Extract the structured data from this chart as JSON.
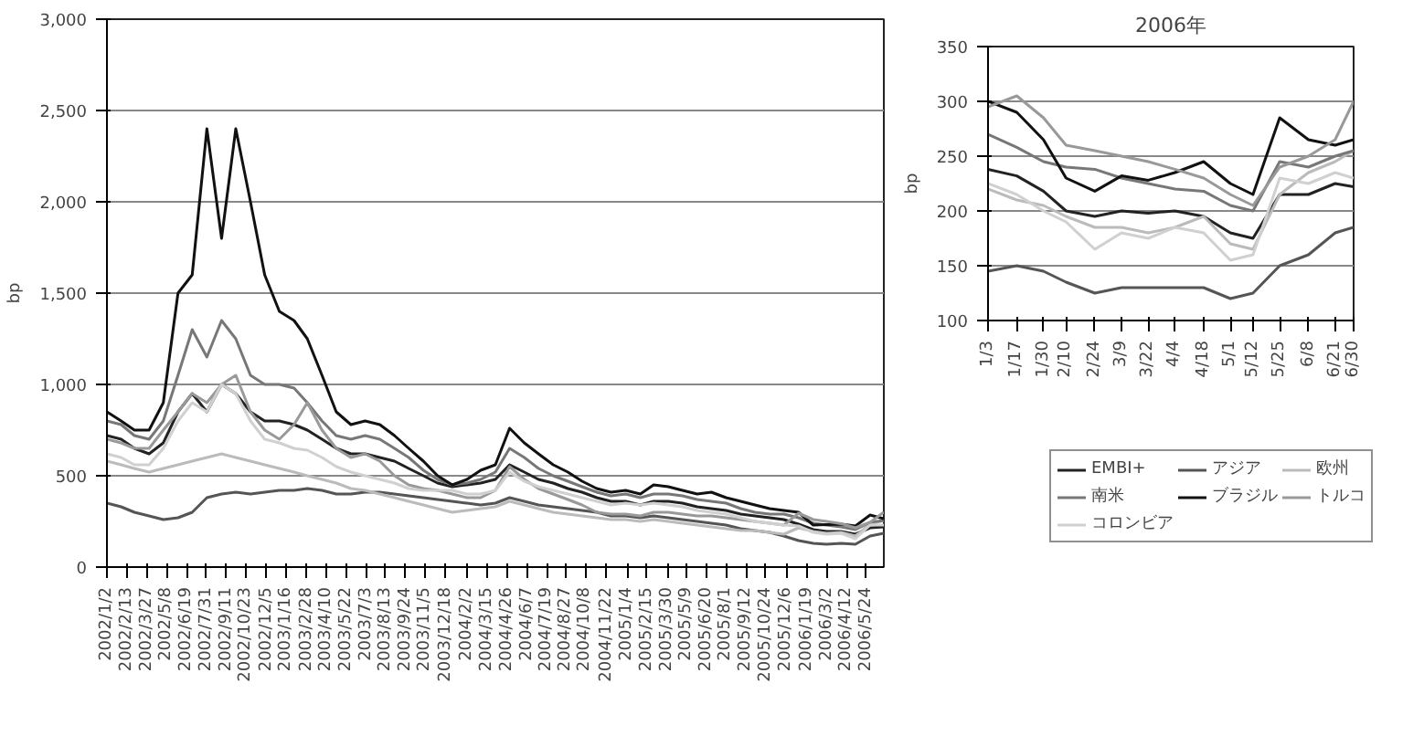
{
  "chart_data": [
    {
      "type": "line",
      "ylabel": "bp",
      "grid": "y",
      "legend": "bottom right",
      "ylim": [
        0,
        3000
      ],
      "yticks": [
        0,
        {
          "value": 500,
          "label": "500"
        },
        {
          "value": 1000,
          "label": "1,000"
        },
        {
          "value": 1500,
          "label": "1,500"
        },
        {
          "value": 2000,
          "label": "2,000"
        },
        {
          "value": 2500,
          "label": "2,500"
        },
        {
          "value": 3000,
          "label": "3,000"
        }
      ],
      "xlim": [
        "2002-01-02",
        "2006-06-30"
      ],
      "xticks": [
        {
          "value": "2002-01-02",
          "label": "2002/1/2"
        },
        {
          "value": "2002-02-13",
          "label": "2002/2/13"
        },
        {
          "value": "2002-03-27",
          "label": "2002/3/27"
        },
        {
          "value": "2002-05-08",
          "label": "2002/5/8"
        },
        {
          "value": "2002-06-19",
          "label": "2002/6/19"
        },
        {
          "value": "2002-07-31",
          "label": "2002/7/31"
        },
        {
          "value": "2002-09-11",
          "label": "2002/9/11"
        },
        {
          "value": "2002-10-23",
          "label": "2002/10/23"
        },
        {
          "value": "2002-12-05",
          "label": "2002/12/5"
        },
        {
          "value": "2003-01-16",
          "label": "2003/1/16"
        },
        {
          "value": "2003-02-28",
          "label": "2003/2/28"
        },
        {
          "value": "2003-04-10",
          "label": "2003/4/10"
        },
        {
          "value": "2003-05-22",
          "label": "2003/5/22"
        },
        {
          "value": "2003-07-03",
          "label": "2003/7/3"
        },
        {
          "value": "2003-08-13",
          "label": "2003/8/13"
        },
        {
          "value": "2003-09-24",
          "label": "2003/9/24"
        },
        {
          "value": "2003-11-05",
          "label": "2003/11/5"
        },
        {
          "value": "2003-12-18",
          "label": "2003/12/18"
        },
        {
          "value": "2004-02-02",
          "label": "2004/2/2"
        },
        {
          "value": "2004-03-15",
          "label": "2004/3/15"
        },
        {
          "value": "2004-04-26",
          "label": "2004/4/26"
        },
        {
          "value": "2004-06-07",
          "label": "2004/6/7"
        },
        {
          "value": "2004-07-19",
          "label": "2004/7/19"
        },
        {
          "value": "2004-08-27",
          "label": "2004/8/27"
        },
        {
          "value": "2004-10-08",
          "label": "2004/10/8"
        },
        {
          "value": "2004-11-22",
          "label": "2004/11/22"
        },
        {
          "value": "2005-01-04",
          "label": "2005/1/4"
        },
        {
          "value": "2005-02-15",
          "label": "2005/2/15"
        },
        {
          "value": "2005-03-30",
          "label": "2005/3/30"
        },
        {
          "value": "2005-05-09",
          "label": "2005/5/9"
        },
        {
          "value": "2005-06-20",
          "label": "2005/6/20"
        },
        {
          "value": "2005-08-01",
          "label": "2005/8/1"
        },
        {
          "value": "2005-09-12",
          "label": "2005/9/12"
        },
        {
          "value": "2005-10-24",
          "label": "2005/10/24"
        },
        {
          "value": "2005-12-06",
          "label": "2005/12/6"
        },
        {
          "value": "2006-01-19",
          "label": "2006/1/19"
        },
        {
          "value": "2006-03-02",
          "label": "2006/3/2"
        },
        {
          "value": "2006-04-12",
          "label": "2006/4/12"
        },
        {
          "value": "2006-05-24",
          "label": "2006/5/24"
        }
      ],
      "x": [
        "2002-01-02",
        "2002-02-01",
        "2002-03-01",
        "2002-04-01",
        "2002-05-01",
        "2002-06-01",
        "2002-07-01",
        "2002-08-01",
        "2002-09-01",
        "2002-10-01",
        "2002-11-01",
        "2002-12-01",
        "2003-01-01",
        "2003-02-01",
        "2003-03-01",
        "2003-04-01",
        "2003-05-01",
        "2003-06-01",
        "2003-07-01",
        "2003-08-01",
        "2003-09-01",
        "2003-10-01",
        "2003-11-01",
        "2003-12-01",
        "2004-01-01",
        "2004-02-01",
        "2004-03-01",
        "2004-04-01",
        "2004-05-01",
        "2004-06-01",
        "2004-07-01",
        "2004-08-01",
        "2004-09-01",
        "2004-10-01",
        "2004-11-01",
        "2004-12-01",
        "2005-01-01",
        "2005-02-01",
        "2005-03-01",
        "2005-04-01",
        "2005-05-01",
        "2005-06-01",
        "2005-07-01",
        "2005-08-01",
        "2005-09-01",
        "2005-10-01",
        "2005-11-01",
        "2005-12-01",
        "2006-01-01",
        "2006-02-01",
        "2006-03-01",
        "2006-04-01",
        "2006-05-01",
        "2006-06-01",
        "2006-06-30"
      ],
      "series": [
        {
          "name": "EMBI+",
          "color": "#222222",
          "values": [
            720,
            700,
            650,
            620,
            680,
            850,
            950,
            850,
            1000,
            950,
            850,
            800,
            800,
            780,
            750,
            700,
            650,
            620,
            620,
            600,
            580,
            540,
            500,
            460,
            440,
            450,
            460,
            480,
            560,
            520,
            480,
            460,
            430,
            410,
            380,
            360,
            360,
            340,
            360,
            360,
            350,
            330,
            320,
            310,
            290,
            280,
            270,
            260,
            235,
            205,
            195,
            195,
            180,
            215,
            220
          ]
        },
        {
          "name": "アジア",
          "color": "#555555",
          "values": [
            350,
            330,
            300,
            280,
            260,
            270,
            300,
            380,
            400,
            410,
            400,
            410,
            420,
            420,
            430,
            420,
            400,
            400,
            410,
            410,
            400,
            390,
            380,
            370,
            360,
            350,
            340,
            350,
            380,
            360,
            340,
            330,
            320,
            310,
            300,
            280,
            280,
            270,
            280,
            270,
            260,
            250,
            240,
            230,
            210,
            200,
            190,
            170,
            145,
            130,
            125,
            130,
            125,
            170,
            185
          ]
        },
        {
          "name": "欧州",
          "color": "#bbbbbb",
          "values": [
            580,
            560,
            540,
            520,
            540,
            560,
            580,
            600,
            620,
            600,
            580,
            560,
            540,
            520,
            500,
            480,
            460,
            430,
            420,
            400,
            380,
            360,
            340,
            320,
            300,
            310,
            320,
            330,
            360,
            340,
            320,
            300,
            290,
            280,
            270,
            260,
            260,
            250,
            260,
            250,
            240,
            230,
            220,
            210,
            200,
            200,
            190,
            180,
            215,
            195,
            185,
            190,
            170,
            235,
            255
          ]
        },
        {
          "name": "南米",
          "color": "#777777",
          "values": [
            800,
            780,
            720,
            700,
            800,
            1050,
            1300,
            1150,
            1350,
            1250,
            1050,
            1000,
            1000,
            980,
            900,
            800,
            720,
            700,
            720,
            700,
            650,
            600,
            530,
            480,
            450,
            460,
            480,
            520,
            650,
            600,
            540,
            500,
            470,
            440,
            410,
            390,
            400,
            380,
            400,
            400,
            390,
            370,
            360,
            350,
            320,
            300,
            290,
            290,
            270,
            240,
            230,
            220,
            205,
            245,
            255
          ]
        },
        {
          "name": "ブラジル",
          "color": "#111111",
          "values": [
            850,
            800,
            750,
            750,
            900,
            1500,
            1600,
            2400,
            1800,
            2400,
            2000,
            1600,
            1400,
            1350,
            1250,
            1050,
            850,
            780,
            800,
            780,
            720,
            650,
            580,
            500,
            450,
            480,
            530,
            560,
            760,
            680,
            620,
            560,
            520,
            470,
            430,
            410,
            420,
            400,
            450,
            440,
            420,
            400,
            410,
            380,
            360,
            340,
            320,
            310,
            300,
            230,
            232,
            235,
            225,
            285,
            265
          ]
        },
        {
          "name": "トルコ",
          "color": "#999999",
          "values": [
            700,
            680,
            650,
            650,
            750,
            850,
            950,
            900,
            1000,
            1050,
            850,
            750,
            700,
            780,
            900,
            750,
            650,
            600,
            620,
            580,
            500,
            450,
            430,
            420,
            400,
            380,
            380,
            420,
            550,
            480,
            430,
            400,
            370,
            340,
            300,
            290,
            290,
            280,
            300,
            300,
            290,
            280,
            280,
            270,
            260,
            250,
            240,
            230,
            295,
            260,
            250,
            238,
            215,
            245,
            300
          ]
        },
        {
          "name": "コロンビア",
          "color": "#d0d0d0",
          "values": [
            620,
            600,
            560,
            560,
            650,
            800,
            900,
            850,
            1000,
            950,
            800,
            700,
            680,
            650,
            640,
            600,
            550,
            520,
            500,
            480,
            460,
            430,
            420,
            420,
            420,
            400,
            400,
            420,
            520,
            470,
            440,
            420,
            400,
            380,
            360,
            340,
            350,
            340,
            350,
            340,
            330,
            310,
            300,
            290,
            270,
            250,
            240,
            230,
            225,
            190,
            180,
            185,
            155,
            230,
            230
          ]
        }
      ]
    },
    {
      "type": "line",
      "title": "2006年",
      "ylabel": "bp",
      "grid": "y",
      "legend": false,
      "ylim": [
        100,
        350
      ],
      "yticks": [
        100,
        150,
        200,
        250,
        300,
        350
      ],
      "xlim": [
        "2006-01-03",
        "2006-06-30"
      ],
      "xticks": [
        {
          "value": "2006-01-03",
          "label": "1/3"
        },
        {
          "value": "2006-01-17",
          "label": "1/17"
        },
        {
          "value": "2006-01-30",
          "label": "1/30"
        },
        {
          "value": "2006-02-10",
          "label": "2/10"
        },
        {
          "value": "2006-02-24",
          "label": "2/24"
        },
        {
          "value": "2006-03-09",
          "label": "3/9"
        },
        {
          "value": "2006-03-22",
          "label": "3/22"
        },
        {
          "value": "2006-04-04",
          "label": "4/4"
        },
        {
          "value": "2006-04-18",
          "label": "4/18"
        },
        {
          "value": "2006-05-01",
          "label": "5/1"
        },
        {
          "value": "2006-05-12",
          "label": "5/12"
        },
        {
          "value": "2006-05-25",
          "label": "5/25"
        },
        {
          "value": "2006-06-08",
          "label": "6/8"
        },
        {
          "value": "2006-06-21",
          "label": "6/21"
        },
        {
          "value": "2006-06-30",
          "label": "6/30"
        }
      ],
      "x": [
        "2006-01-03",
        "2006-01-17",
        "2006-01-30",
        "2006-02-10",
        "2006-02-24",
        "2006-03-09",
        "2006-03-22",
        "2006-04-04",
        "2006-04-18",
        "2006-05-01",
        "2006-05-12",
        "2006-05-25",
        "2006-06-08",
        "2006-06-21",
        "2006-06-30"
      ],
      "series": [
        {
          "color": "#222222",
          "values": [
            238,
            232,
            218,
            200,
            195,
            200,
            198,
            200,
            195,
            180,
            175,
            215,
            215,
            225,
            222
          ]
        },
        {
          "color": "#555555",
          "values": [
            145,
            150,
            145,
            135,
            125,
            130,
            130,
            130,
            130,
            120,
            125,
            150,
            160,
            180,
            185
          ]
        },
        {
          "color": "#bbbbbb",
          "values": [
            220,
            210,
            205,
            195,
            185,
            185,
            180,
            185,
            195,
            170,
            165,
            215,
            235,
            245,
            255
          ]
        },
        {
          "color": "#777777",
          "values": [
            270,
            258,
            245,
            240,
            238,
            230,
            225,
            220,
            218,
            205,
            200,
            245,
            240,
            250,
            255
          ]
        },
        {
          "color": "#111111",
          "values": [
            300,
            290,
            265,
            230,
            218,
            232,
            228,
            235,
            245,
            225,
            215,
            285,
            265,
            260,
            265
          ]
        },
        {
          "color": "#999999",
          "values": [
            295,
            305,
            285,
            260,
            255,
            250,
            245,
            238,
            230,
            215,
            205,
            240,
            250,
            265,
            300
          ]
        },
        {
          "color": "#d0d0d0",
          "values": [
            225,
            215,
            200,
            190,
            165,
            180,
            175,
            185,
            180,
            155,
            160,
            230,
            225,
            235,
            230
          ]
        }
      ]
    }
  ]
}
